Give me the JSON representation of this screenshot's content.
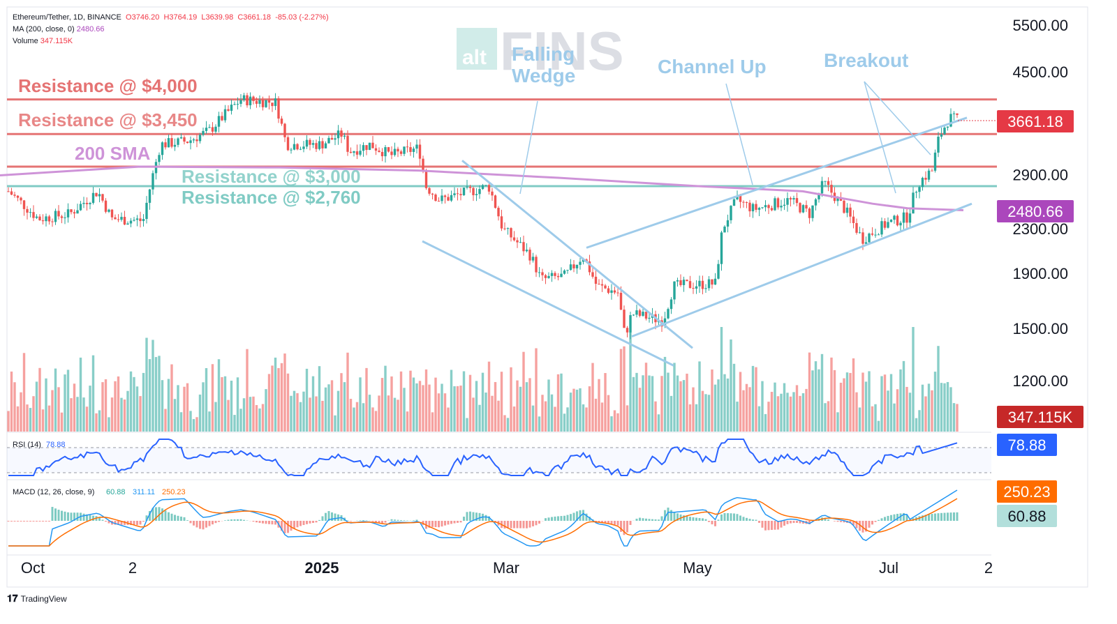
{
  "header": {
    "symbol": "Ethereum/Tether, 1D, BINANCE",
    "ohlc": {
      "o": "O3746.20",
      "h": "H3764.19",
      "l": "L3639.98",
      "c": "C3661.18",
      "chg": "-85.03 (-2.27%)"
    },
    "ma_label": "MA (200, close, 0)",
    "ma_value": "2480.66",
    "volume_label": "Volume",
    "volume_value": "347.115K"
  },
  "watermark": {
    "badge": "alt",
    "word": "FINS"
  },
  "footer": {
    "brand": "TradingView"
  },
  "annotations": {
    "r4000": "Resistance @ $4,000",
    "r3450": "Resistance @ $3,450",
    "r3000": "Resistance @ $3,000",
    "r2760": "Resistance @ $2,760",
    "sma": "200 SMA",
    "wedge1": "Falling",
    "wedge2": "Wedge",
    "channel": "Channel Up",
    "breakout": "Breakout"
  },
  "price_tags": {
    "last": "3661.18",
    "ma": "2480.66",
    "volume": "347.115K",
    "rsi": "78.88",
    "macd_signal": "250.23",
    "macd_hist": "60.88"
  },
  "rsi_header": {
    "label": "RSI (14)",
    "value": "78.88"
  },
  "macd_header": {
    "label": "MACD (12, 26, close, 9)",
    "v1": "60.88",
    "v2": "311.11",
    "v3": "250.23"
  },
  "colors": {
    "up": "#26a69a",
    "down": "#ef5350",
    "resistance": "#e57373",
    "support": "#80cbc4",
    "sma": "#ce93d8",
    "trendline": "#9ecbea",
    "rsi": "#2962ff",
    "macd": "#2196f3",
    "signal": "#ff6d00"
  },
  "chart_data": {
    "type": "candlestick",
    "scale": "log",
    "y_ticks": [
      1200,
      1500,
      1900,
      2300,
      2900,
      4500,
      5500
    ],
    "x_ticks": [
      "Oct",
      "2",
      "2025",
      "Mar",
      "May",
      "Jul",
      "2"
    ],
    "levels": [
      4000,
      3450,
      3000,
      2760
    ],
    "sma_200": [
      [
        0,
        2890
      ],
      [
        200,
        3000
      ],
      [
        400,
        2990
      ],
      [
        600,
        2950
      ],
      [
        800,
        2860
      ],
      [
        1000,
        2760
      ],
      [
        1150,
        2700
      ],
      [
        1250,
        2560
      ],
      [
        1300,
        2510
      ],
      [
        1380,
        2490
      ]
    ],
    "falling_wedge": [
      [
        [
          605,
          2180
        ],
        [
          965,
          1280
        ]
      ],
      [
        [
          662,
          3080
        ],
        [
          992,
          1380
        ]
      ]
    ],
    "channel_up": [
      [
        [
          840,
          2120
        ],
        [
          1385,
          3700
        ]
      ],
      [
        [
          905,
          1450
        ],
        [
          1392,
          2560
        ]
      ]
    ],
    "rsi_last": 78.88,
    "macd": {
      "macd": 311.11,
      "signal": 250.23,
      "hist": 60.88
    }
  }
}
